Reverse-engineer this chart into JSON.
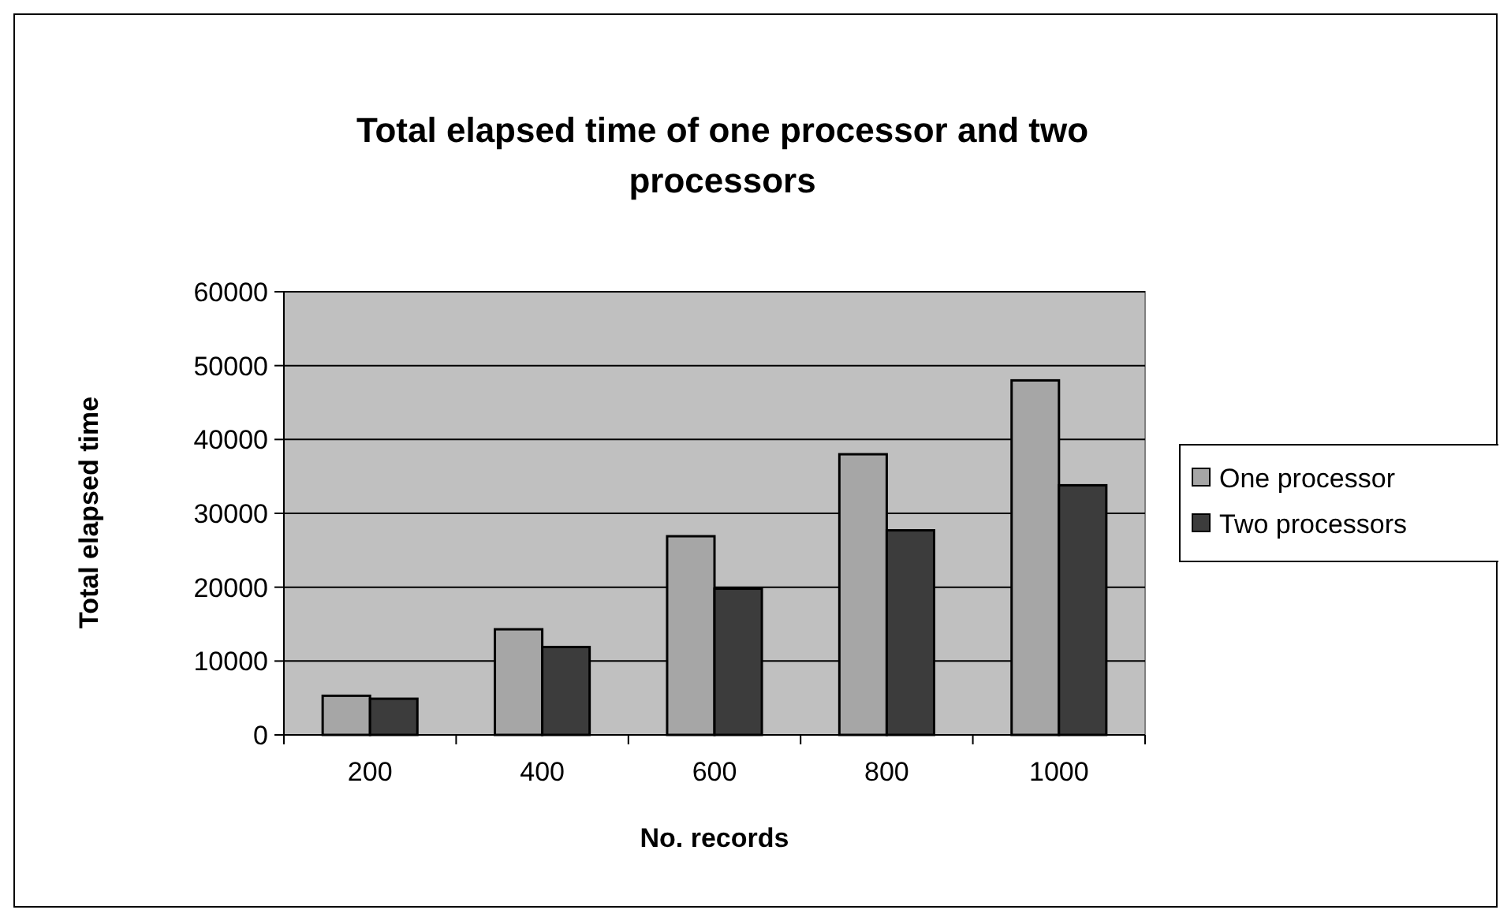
{
  "chart_data": {
    "type": "bar",
    "title": "Total elapsed time of one processor and two processors",
    "xlabel": "No. records",
    "ylabel": "Total elapsed time",
    "categories": [
      "200",
      "400",
      "600",
      "800",
      "1000"
    ],
    "series": [
      {
        "name": "One processor",
        "color": "#a6a6a6",
        "values": [
          5300,
          14300,
          26900,
          38000,
          48000
        ]
      },
      {
        "name": "Two processors",
        "color": "#3c3c3c",
        "values": [
          4900,
          11900,
          19800,
          27700,
          33800
        ]
      }
    ],
    "ylim": [
      0,
      60000
    ],
    "yticks": [
      0,
      10000,
      20000,
      30000,
      40000,
      50000,
      60000
    ],
    "grid": "y",
    "legend": "right"
  }
}
